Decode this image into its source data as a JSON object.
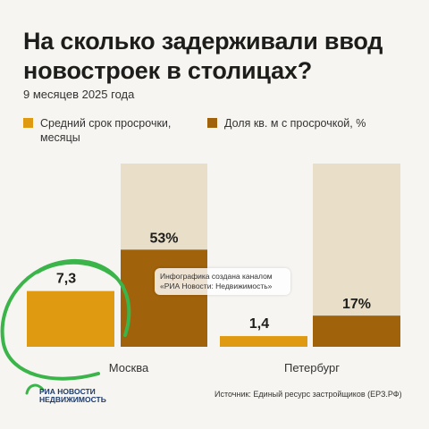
{
  "title": "На сколько задерживали ввод новостроек в столицах?",
  "subtitle": "9 месяцев 2025 года",
  "legend": [
    {
      "label": "Средний срок просрочки, месяцы",
      "color": "#e09a12"
    },
    {
      "label": "Доля кв. м с просрочкой, %",
      "color": "#a0620a"
    }
  ],
  "tooltip": {
    "line1": "Инфографика создана каналом",
    "line2": "«РИА Новости: Недвижимость»"
  },
  "logo": {
    "line1": "РИА НОВОСТИ",
    "line2": "НЕДВИЖИМОСТЬ"
  },
  "source": "Источник: Единый ресурс застройщиков (ЕРЗ.РФ)",
  "chart_data": {
    "type": "bar",
    "categories": [
      "Москва",
      "Петербург"
    ],
    "series": [
      {
        "name": "Средний срок просрочки, месяцы",
        "values": [
          7.3,
          1.4
        ],
        "labels": [
          "7,3",
          "1,4"
        ]
      },
      {
        "name": "Доля кв. м с просрочкой, %",
        "values": [
          53,
          17
        ],
        "labels": [
          "53%",
          "17%"
        ]
      }
    ],
    "ylim_months": [
      0,
      24
    ],
    "ylim_percent": [
      0,
      100
    ],
    "background_color": "#e9dfc9",
    "annotation_color": "#3bb54a"
  }
}
